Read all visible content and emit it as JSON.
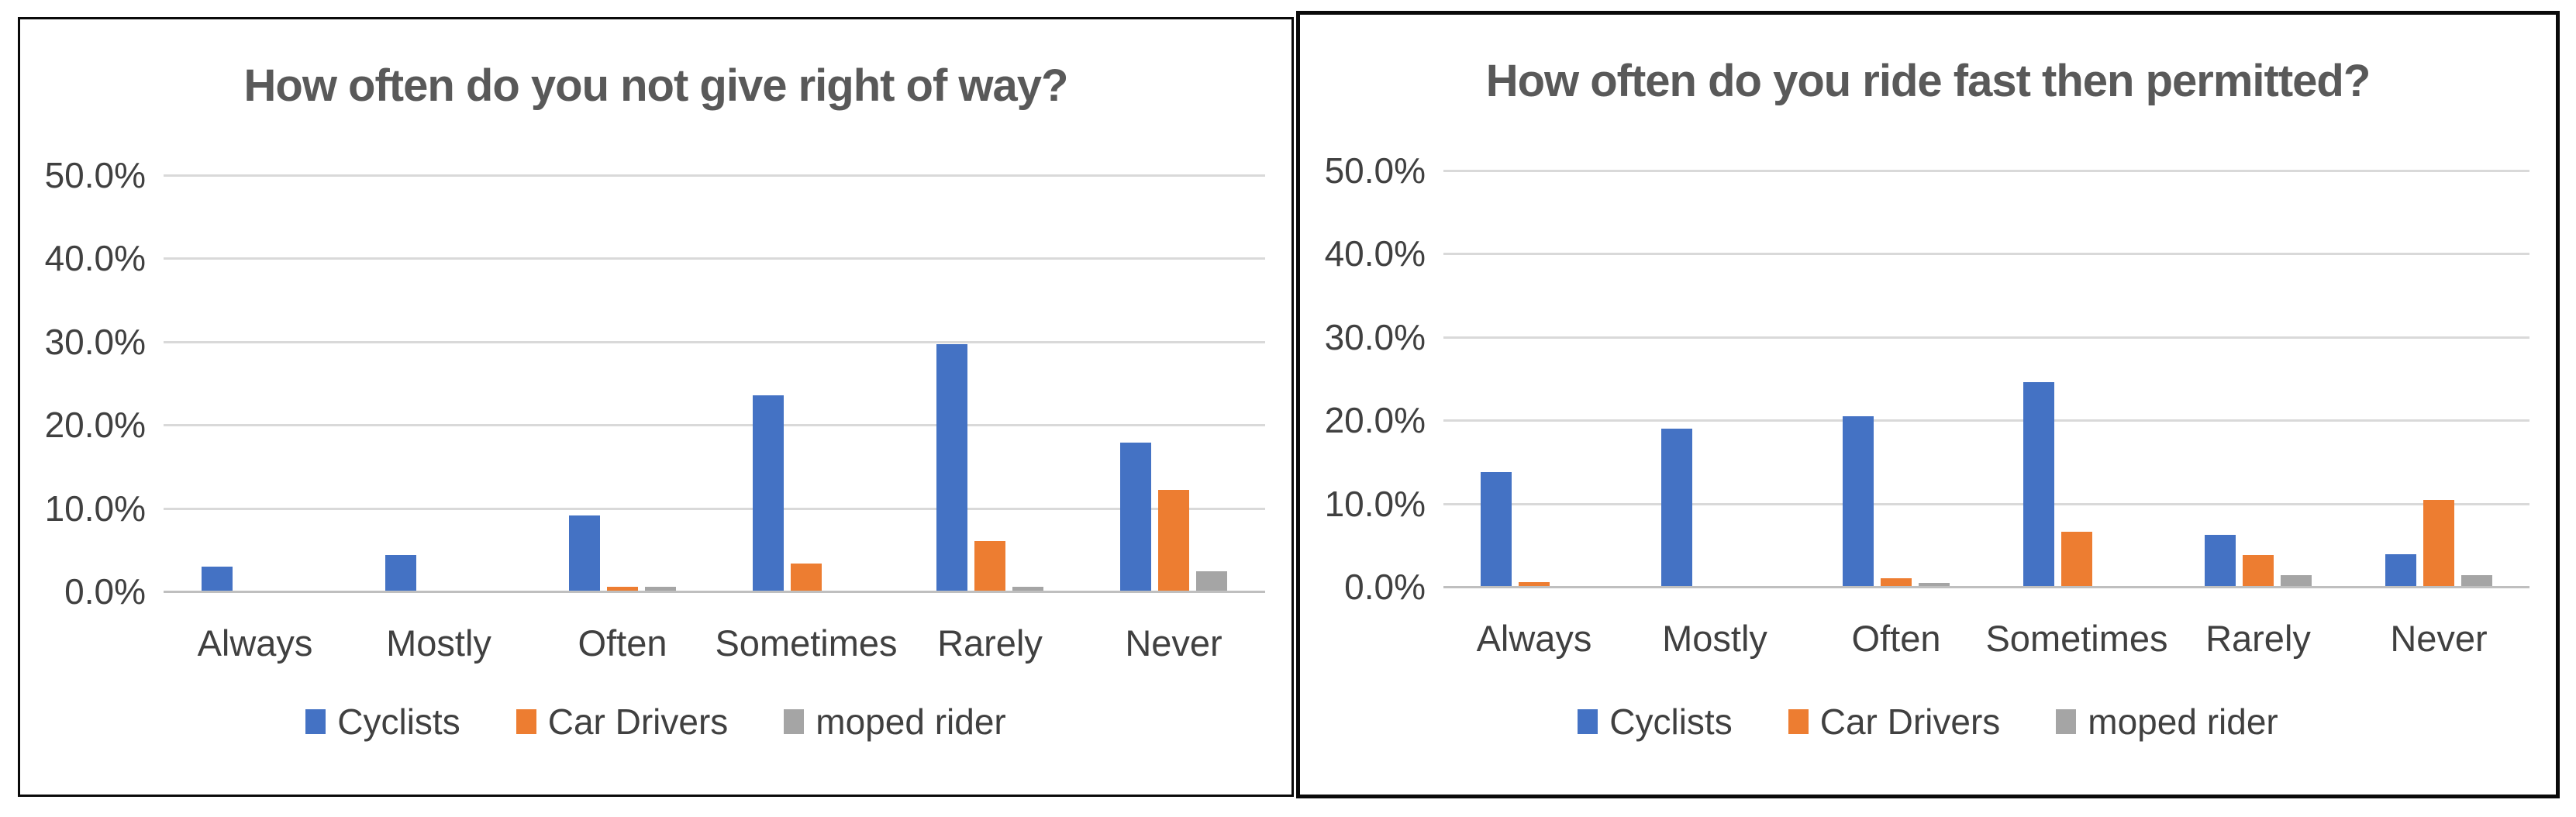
{
  "colors": {
    "cyclists": "#4472C4",
    "car_drivers": "#ED7D31",
    "moped_rider": "#A5A5A5",
    "gridline": "#D9D9D9",
    "zero_axis_line": "#BFBFBF",
    "axis_text": "#404040",
    "title_text": "#595959",
    "chart_border": "#0A0A0A",
    "background": "#FFFFFF"
  },
  "chart_data": [
    {
      "type": "bar",
      "title": "How often do you not give right of way?",
      "categories": [
        "Always",
        "Mostly",
        "Often",
        "Sometimes",
        "Rarely",
        "Never"
      ],
      "series": [
        {
          "name": "Cyclists",
          "color": "#4472C4",
          "values": [
            2.9,
            4.3,
            9.0,
            23.5,
            29.6,
            17.8
          ]
        },
        {
          "name": "Car Drivers",
          "color": "#ED7D31",
          "values": [
            0,
            0,
            0.5,
            3.3,
            6.0,
            12.1
          ]
        },
        {
          "name": "moped rider",
          "color": "#A5A5A5",
          "values": [
            0,
            0,
            0.5,
            0,
            0.5,
            2.3
          ]
        }
      ],
      "xlabel": "",
      "ylabel": "",
      "ylim": [
        0,
        50
      ],
      "y_ticks": [
        "0.0%",
        "10.0%",
        "20.0%",
        "30.0%",
        "40.0%",
        "50.0%"
      ],
      "grid": true,
      "legend_position": "bottom"
    },
    {
      "type": "bar",
      "title": "How often do you ride fast then permitted?",
      "categories": [
        "Always",
        "Mostly",
        "Often",
        "Sometimes",
        "Rarely",
        "Never"
      ],
      "series": [
        {
          "name": "Cyclists",
          "color": "#4472C4",
          "values": [
            13.7,
            18.9,
            20.4,
            24.5,
            6.1,
            3.8
          ]
        },
        {
          "name": "Car Drivers",
          "color": "#ED7D31",
          "values": [
            0.5,
            0,
            0.9,
            6.5,
            3.7,
            10.3
          ]
        },
        {
          "name": "moped rider",
          "color": "#A5A5A5",
          "values": [
            0,
            0,
            0.4,
            0,
            1.3,
            1.3
          ]
        }
      ],
      "xlabel": "",
      "ylabel": "",
      "ylim": [
        0,
        50
      ],
      "y_ticks": [
        "0.0%",
        "10.0%",
        "20.0%",
        "30.0%",
        "40.0%",
        "50.0%"
      ],
      "grid": true,
      "legend_position": "bottom"
    }
  ]
}
